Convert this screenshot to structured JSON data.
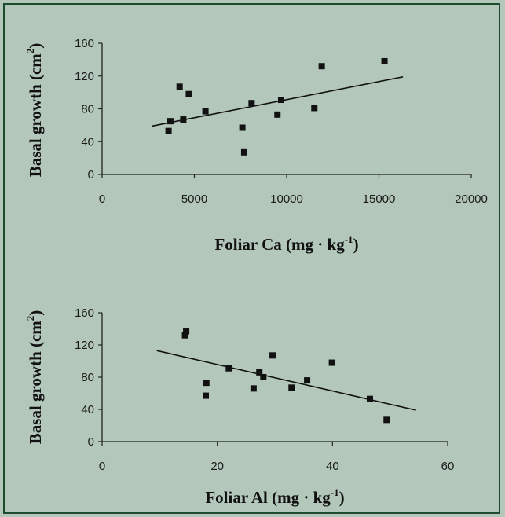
{
  "chart_data": [
    {
      "type": "scatter",
      "xlabel": "Foliar Ca (mg · kg",
      "xlabel_sup": "-1",
      "xlabel_end": ")",
      "ylabel": "Basal growth (cm",
      "ylabel_sup": "2",
      "ylabel_end": ")",
      "xlim": [
        0,
        20000
      ],
      "ylim": [
        0,
        160
      ],
      "xticks": [
        0,
        5000,
        10000,
        15000,
        20000
      ],
      "yticks": [
        0,
        40,
        80,
        120,
        160
      ],
      "grid": false,
      "points": [
        {
          "x": 3600,
          "y": 53
        },
        {
          "x": 3700,
          "y": 65
        },
        {
          "x": 4200,
          "y": 107
        },
        {
          "x": 4400,
          "y": 67
        },
        {
          "x": 4700,
          "y": 98
        },
        {
          "x": 5600,
          "y": 77
        },
        {
          "x": 7600,
          "y": 57
        },
        {
          "x": 7700,
          "y": 27
        },
        {
          "x": 8100,
          "y": 87
        },
        {
          "x": 9500,
          "y": 73
        },
        {
          "x": 9700,
          "y": 91
        },
        {
          "x": 11500,
          "y": 81
        },
        {
          "x": 11900,
          "y": 132
        },
        {
          "x": 15300,
          "y": 138
        }
      ],
      "trendline": {
        "x": [
          2700,
          16300
        ],
        "y": [
          59,
          119
        ]
      }
    },
    {
      "type": "scatter",
      "xlabel": "Foliar Al (mg · kg",
      "xlabel_sup": "-1",
      "xlabel_end": ")",
      "ylabel": "Basal growth (cm",
      "ylabel_sup": "2",
      "ylabel_end": ")",
      "xlim": [
        0,
        60
      ],
      "ylim": [
        0,
        160
      ],
      "xticks": [
        0,
        20,
        40,
        60
      ],
      "yticks": [
        0,
        40,
        80,
        120,
        160
      ],
      "grid": false,
      "points": [
        {
          "x": 14.4,
          "y": 132
        },
        {
          "x": 14.6,
          "y": 137
        },
        {
          "x": 18.0,
          "y": 57
        },
        {
          "x": 18.1,
          "y": 73
        },
        {
          "x": 22.0,
          "y": 91
        },
        {
          "x": 26.3,
          "y": 66
        },
        {
          "x": 27.3,
          "y": 86
        },
        {
          "x": 28.0,
          "y": 80
        },
        {
          "x": 29.6,
          "y": 107
        },
        {
          "x": 32.9,
          "y": 67
        },
        {
          "x": 35.6,
          "y": 76
        },
        {
          "x": 39.9,
          "y": 98
        },
        {
          "x": 46.5,
          "y": 53
        },
        {
          "x": 49.4,
          "y": 27
        }
      ],
      "trendline": {
        "x": [
          9.5,
          54.5
        ],
        "y": [
          113,
          39
        ]
      }
    }
  ]
}
